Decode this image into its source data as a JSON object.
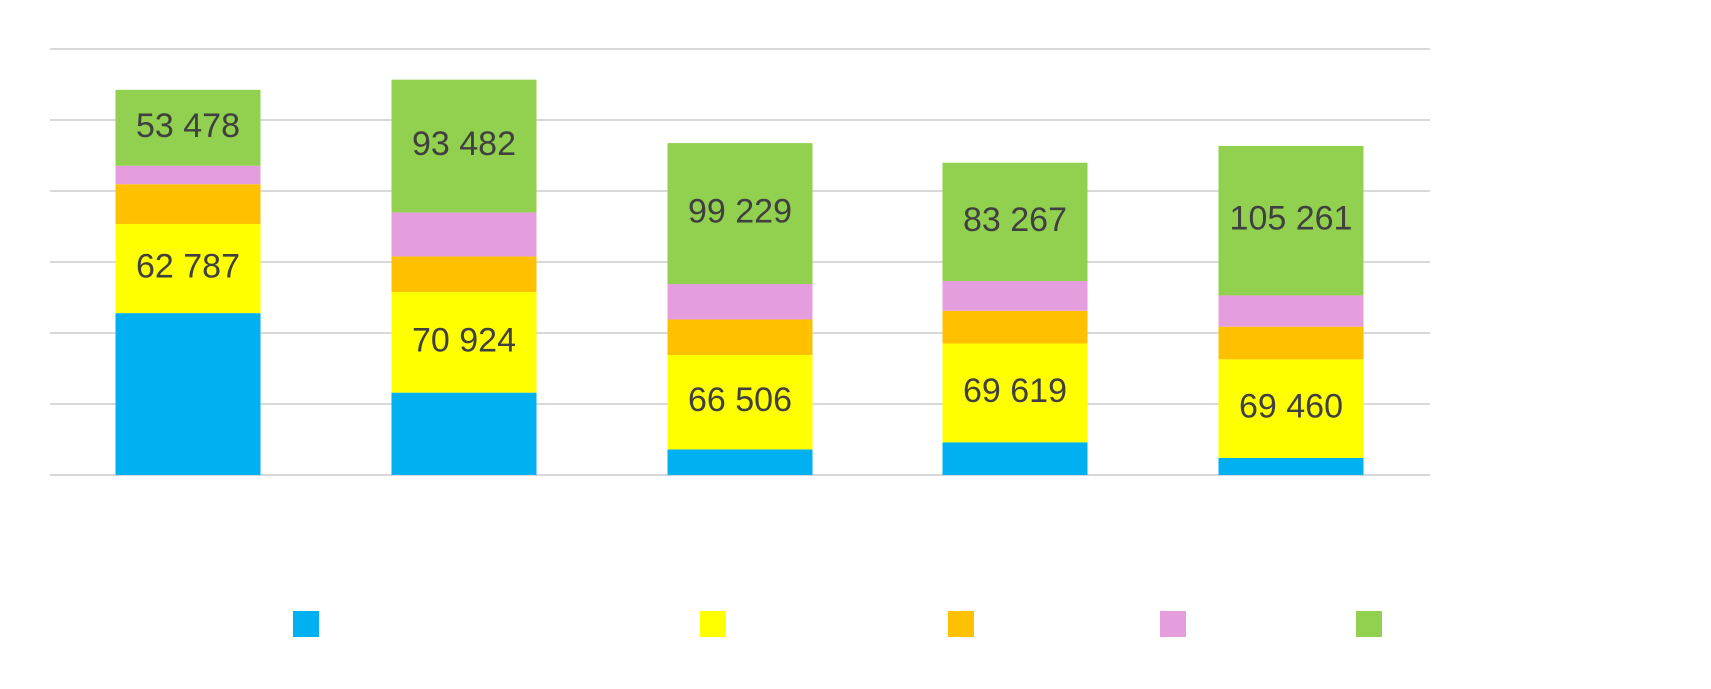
{
  "chart_data": {
    "type": "stacked-bar",
    "categories": [
      "",
      "",
      "",
      "",
      ""
    ],
    "ylim": [
      0,
      300000
    ],
    "series": [
      {
        "name": "",
        "color": "#00b0f0",
        "values": [
          114000,
          58000,
          18000,
          23000,
          12000
        ],
        "labels": [
          "",
          "",
          "",
          "",
          ""
        ]
      },
      {
        "name": "",
        "color": "#ffff00",
        "values": [
          62787,
          70924,
          66506,
          69619,
          69460
        ],
        "labels": [
          "62 787",
          "70 924",
          "66 506",
          "69 619",
          "69 460"
        ]
      },
      {
        "name": "",
        "color": "#ffc000",
        "values": [
          28000,
          25000,
          25000,
          23000,
          23000
        ],
        "labels": [
          "",
          "",
          "",
          "",
          ""
        ]
      },
      {
        "name": "",
        "color": "#e49edd",
        "values": [
          13000,
          31000,
          25000,
          21000,
          22000
        ],
        "labels": [
          "",
          "",
          "",
          "",
          ""
        ]
      },
      {
        "name": "",
        "color": "#92d050",
        "values": [
          53478,
          93482,
          99229,
          83267,
          105261
        ],
        "labels": [
          "53 478",
          "93 482",
          "99 229",
          "83 267",
          "105 261"
        ]
      }
    ],
    "grid": true,
    "legend": "bottom"
  }
}
